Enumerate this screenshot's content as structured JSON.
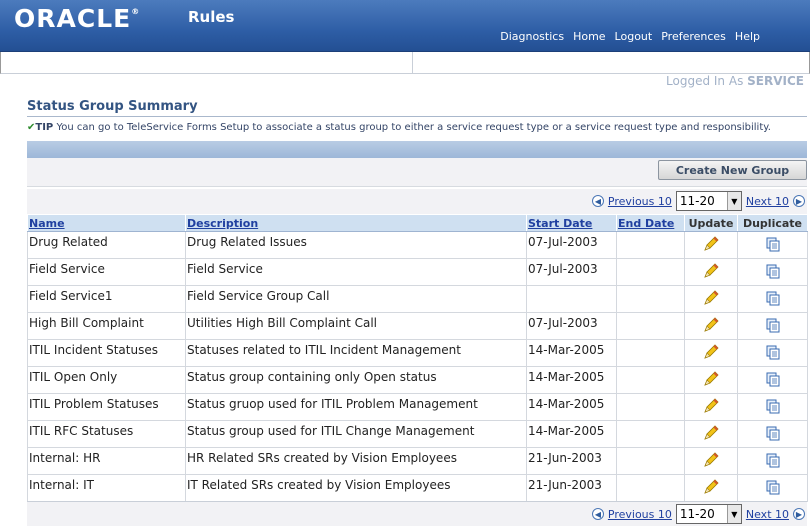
{
  "header": {
    "logo": "ORACLE",
    "logo_mark": "®",
    "app_title": "Rules",
    "links": [
      "Diagnostics",
      "Home",
      "Logout",
      "Preferences",
      "Help"
    ]
  },
  "logged_in": {
    "prefix": "Logged In As",
    "user": "SERVICE"
  },
  "page": {
    "title": "Status Group Summary",
    "tip_label": "TIP",
    "tip_text": " You can go to TeleService Forms Setup to associate a status group to either a service request type or a service request type and responsibility."
  },
  "toolbar": {
    "create_label": "Create New Group"
  },
  "pagination": {
    "previous": "Previous 10",
    "next": "Next 10",
    "range": "11-20"
  },
  "table": {
    "columns": [
      "Name",
      "Description",
      "Start Date",
      "End Date",
      "Update",
      "Duplicate"
    ],
    "rows": [
      {
        "name": "Drug Related",
        "description": "Drug Related Issues",
        "start": "07-Jul-2003",
        "end": ""
      },
      {
        "name": "Field Service",
        "description": "Field Service",
        "start": "07-Jul-2003",
        "end": ""
      },
      {
        "name": "Field Service1",
        "description": "Field Service Group Call",
        "start": "",
        "end": ""
      },
      {
        "name": "High Bill Complaint",
        "description": "Utilities High Bill Complaint Call",
        "start": "07-Jul-2003",
        "end": ""
      },
      {
        "name": "ITIL Incident Statuses",
        "description": "Statuses related to ITIL Incident Management",
        "start": "14-Mar-2005",
        "end": ""
      },
      {
        "name": "ITIL Open Only",
        "description": "Status group containing only Open status",
        "start": "14-Mar-2005",
        "end": ""
      },
      {
        "name": "ITIL Problem Statuses",
        "description": "Status gruop used for ITIL Problem Management",
        "start": "14-Mar-2005",
        "end": ""
      },
      {
        "name": "ITIL RFC Statuses",
        "description": "Status group used for ITIL Change Management",
        "start": "14-Mar-2005",
        "end": ""
      },
      {
        "name": "Internal: HR",
        "description": "HR Related SRs created by Vision Employees",
        "start": "21-Jun-2003",
        "end": ""
      },
      {
        "name": "Internal: IT",
        "description": "IT Related SRs created by Vision Employees",
        "start": "21-Jun-2003",
        "end": ""
      }
    ]
  },
  "icons": {
    "update": "pencil-icon",
    "duplicate": "duplicate-icon",
    "previous": "arrow-left-icon",
    "next": "arrow-right-icon"
  },
  "colors": {
    "header_blue": "#2e5ea6",
    "title_blue": "#335482",
    "link_blue": "#2040a0",
    "column_header_bg": "#cfe0f1"
  }
}
